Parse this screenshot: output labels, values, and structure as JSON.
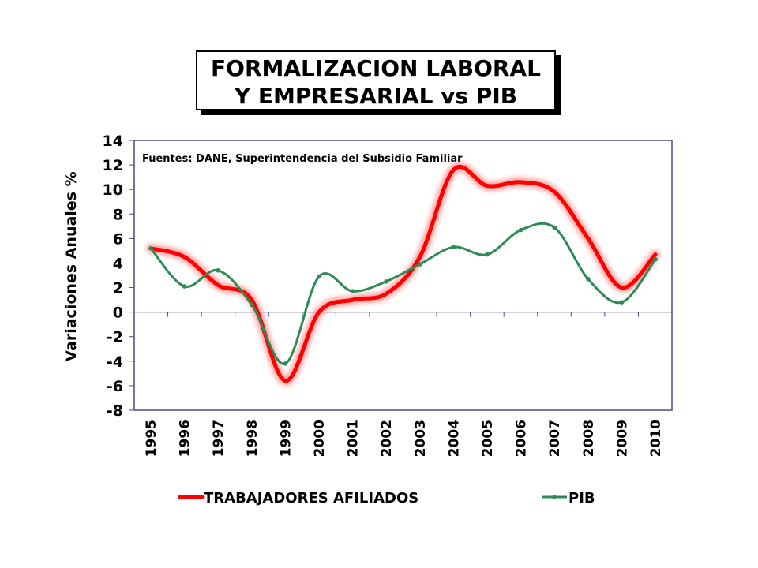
{
  "title": {
    "line1": "FORMALIZACION LABORAL",
    "line2": "Y EMPRESARIAL vs PIB"
  },
  "chart_data": {
    "type": "line",
    "note": "Fuentes: DANE, Superintendencia del Subsidio Familiar",
    "ylabel": "Variaciones Anuales %",
    "xlabel": "",
    "ylim": [
      -8,
      14
    ],
    "yticks": [
      "14",
      "12",
      "10",
      "8",
      "6",
      "4",
      "2",
      "0",
      "-2",
      "-4",
      "-6",
      "-8"
    ],
    "categories": [
      "1995",
      "1996",
      "1997",
      "1998",
      "1999",
      "2000",
      "2001",
      "2002",
      "2003",
      "2004",
      "2005",
      "2006",
      "2007",
      "2008",
      "2009",
      "2010"
    ],
    "grid": false,
    "legend_position": "bottom",
    "series": [
      {
        "name": "TRABAJADORES AFILIADOS",
        "color": "#ff0000",
        "values": [
          5.2,
          4.5,
          2.2,
          1.0,
          -5.6,
          0.0,
          1.0,
          1.5,
          4.5,
          11.6,
          10.3,
          10.6,
          9.8,
          6.0,
          2.0,
          4.7
        ]
      },
      {
        "name": "PIB",
        "color": "#2e8b57",
        "values": [
          5.2,
          2.1,
          3.4,
          0.6,
          -4.2,
          2.9,
          1.7,
          2.5,
          3.9,
          5.3,
          4.7,
          6.7,
          6.9,
          2.7,
          0.8,
          4.3
        ]
      }
    ]
  }
}
